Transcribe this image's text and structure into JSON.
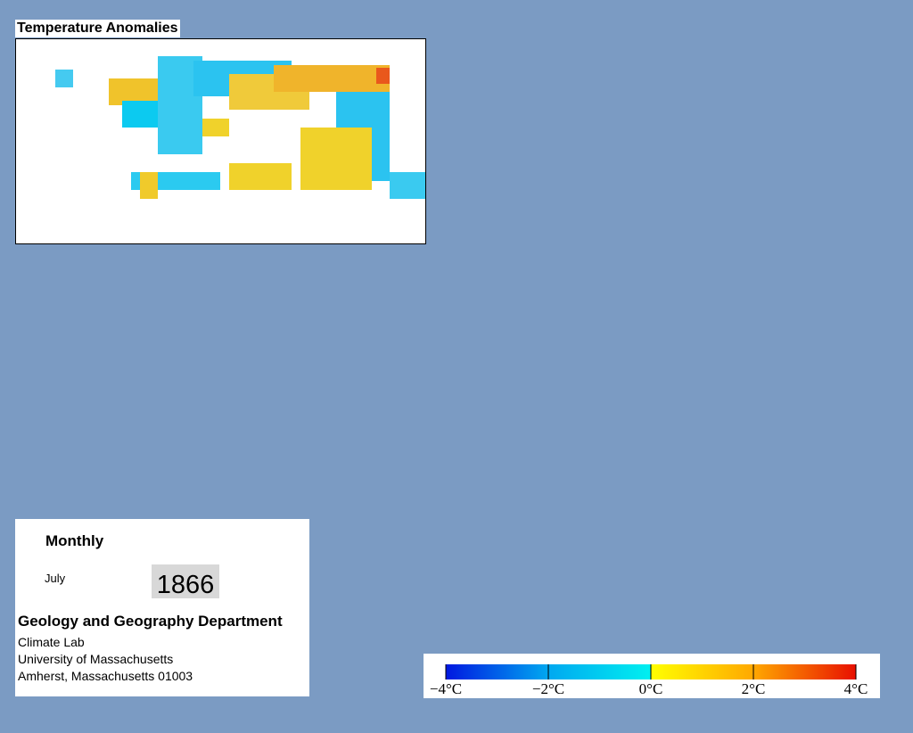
{
  "map": {
    "title": "Temperature Anomalies"
  },
  "info": {
    "period": "Monthly",
    "month": "July",
    "year": "1866",
    "department": "Geology and Geography Department",
    "lines": [
      "Climate Lab",
      "University of Massachusetts",
      "Amherst, Massachusetts 01003"
    ]
  },
  "colorbar": {
    "lim": [
      -4,
      4
    ],
    "colors": [
      "#0018e0",
      "#00a8f0",
      "#00f0f0",
      "#ffff00",
      "#ffa800",
      "#e81000"
    ],
    "ticks": [
      {
        "value": -4,
        "label": "−4°C"
      },
      {
        "value": -2,
        "label": "−2°C"
      },
      {
        "value": 0,
        "label": "0°C"
      },
      {
        "value": 2,
        "label": "2°C"
      },
      {
        "value": 4,
        "label": "4°C"
      }
    ]
  }
}
